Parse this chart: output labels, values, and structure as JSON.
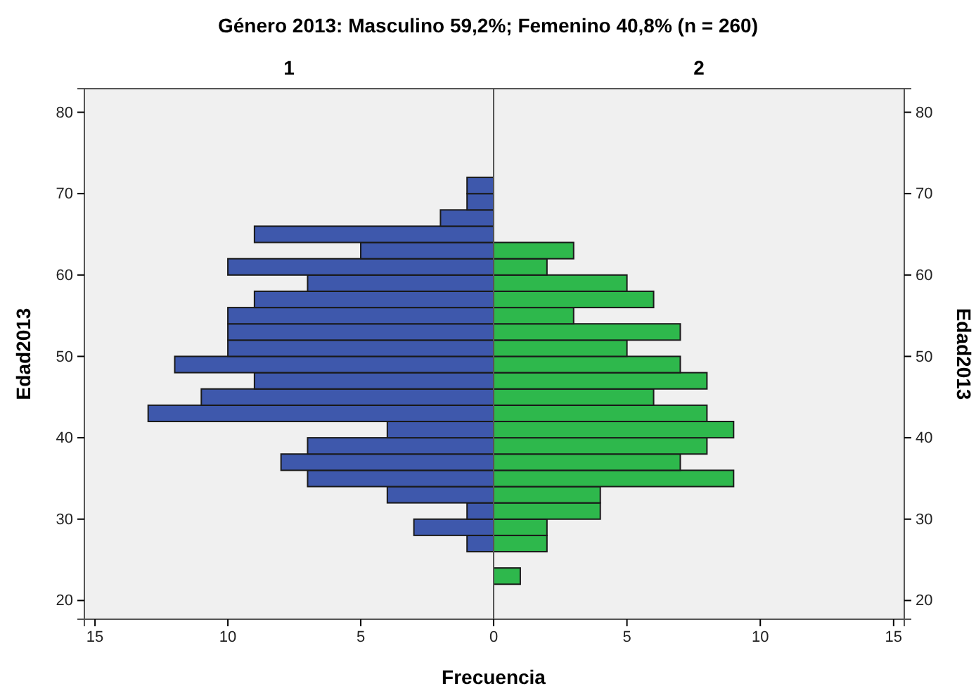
{
  "chart_data": [
    {
      "type": "histogram",
      "orientation": "horizontal",
      "title": "Género 2013: Masculino 59,2%; Femenino 40,8% (n = 260)",
      "subtitle": "1",
      "xlabel": "Frecuencia",
      "ylabel": "Edad2013",
      "color": "#3e58ac",
      "bins": [
        22,
        24,
        26,
        28,
        30,
        32,
        34,
        36,
        38,
        40,
        42,
        44,
        46,
        48,
        50,
        52,
        54,
        56,
        58,
        60,
        62,
        64,
        66,
        68,
        70,
        72
      ],
      "values": [
        0,
        0,
        1,
        3,
        1,
        4,
        7,
        8,
        7,
        4,
        13,
        11,
        9,
        12,
        10,
        10,
        10,
        9,
        7,
        10,
        5,
        9,
        2,
        1,
        1
      ],
      "xlim": [
        15.4,
        0
      ],
      "xticks": [
        15,
        10,
        5,
        0
      ],
      "ylim": [
        17.7,
        82.9
      ],
      "yticks": [
        20,
        30,
        40,
        50,
        60,
        70,
        80
      ],
      "grid": false
    },
    {
      "type": "histogram",
      "orientation": "horizontal",
      "subtitle": "2",
      "ylabel": "Edad2013",
      "color": "#2eb84c",
      "bins": [
        22,
        24,
        26,
        28,
        30,
        32,
        34,
        36,
        38,
        40,
        42,
        44,
        46,
        48,
        50,
        52,
        54,
        56,
        58,
        60,
        62,
        64,
        66,
        68,
        70,
        72
      ],
      "values": [
        1,
        0,
        2,
        2,
        4,
        4,
        9,
        7,
        8,
        9,
        8,
        6,
        8,
        7,
        5,
        7,
        3,
        6,
        5,
        2,
        3,
        0,
        0,
        0,
        0
      ],
      "xlim": [
        0,
        15.4
      ],
      "xticks": [
        {
          "value": 0,
          "label": null
        },
        5,
        10,
        15
      ],
      "ylim": [
        17.7,
        82.9
      ],
      "yticks": [
        20,
        30,
        40,
        50,
        60,
        70,
        80
      ],
      "grid": false
    }
  ]
}
